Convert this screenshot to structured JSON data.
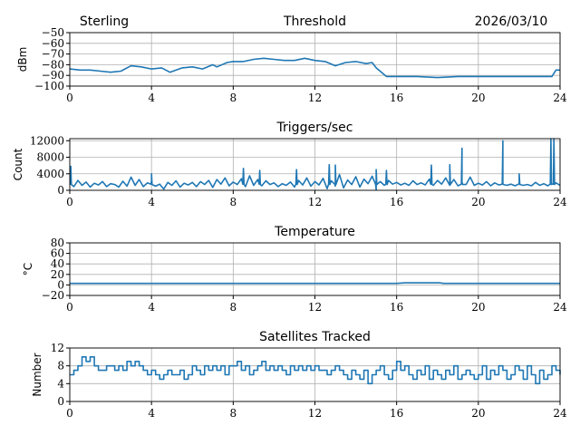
{
  "header": {
    "left": "Sterling",
    "center": "Threshold",
    "right": "2026/03/10"
  },
  "chart_data": [
    {
      "type": "line",
      "title": "Threshold",
      "ylabel": "dBm",
      "xlim": [
        0,
        24
      ],
      "ylim": [
        -100,
        -50
      ],
      "xticks": [
        0,
        4,
        8,
        12,
        16,
        20,
        24
      ],
      "yticks": [
        -100,
        -90,
        -80,
        -70,
        -60,
        -50
      ],
      "grid": true,
      "points": [
        [
          0,
          -84
        ],
        [
          0.5,
          -85
        ],
        [
          1,
          -85
        ],
        [
          1.5,
          -86
        ],
        [
          2,
          -87
        ],
        [
          2.5,
          -86
        ],
        [
          3,
          -81
        ],
        [
          3.5,
          -82
        ],
        [
          4,
          -84
        ],
        [
          4.5,
          -83
        ],
        [
          4.9,
          -87
        ],
        [
          5.5,
          -83
        ],
        [
          6,
          -82
        ],
        [
          6.5,
          -84
        ],
        [
          7,
          -80
        ],
        [
          7.2,
          -82
        ],
        [
          7.7,
          -78
        ],
        [
          8,
          -77
        ],
        [
          8.5,
          -77
        ],
        [
          9,
          -75
        ],
        [
          9.5,
          -74
        ],
        [
          10,
          -75
        ],
        [
          10.5,
          -76
        ],
        [
          11,
          -76
        ],
        [
          11.5,
          -74
        ],
        [
          12,
          -76
        ],
        [
          12.5,
          -77
        ],
        [
          13,
          -81
        ],
        [
          13.5,
          -78
        ],
        [
          14,
          -77
        ],
        [
          14.5,
          -79
        ],
        [
          14.8,
          -78
        ],
        [
          15,
          -83
        ],
        [
          15.5,
          -91
        ],
        [
          16,
          -91
        ],
        [
          17,
          -91
        ],
        [
          18,
          -92
        ],
        [
          19,
          -91
        ],
        [
          20,
          -91
        ],
        [
          21,
          -91
        ],
        [
          22,
          -91
        ],
        [
          23,
          -91
        ],
        [
          23.6,
          -91
        ],
        [
          23.8,
          -85
        ],
        [
          24,
          -85
        ]
      ]
    },
    {
      "type": "line",
      "title": "Triggers/sec",
      "ylabel": "Count",
      "xlim": [
        0,
        24
      ],
      "ylim": [
        0,
        12500
      ],
      "xticks": [
        0,
        4,
        8,
        12,
        16,
        20,
        24
      ],
      "yticks": [
        0,
        4000,
        8000,
        12000
      ],
      "grid": true,
      "baseline": [
        1500,
        900,
        2400,
        1200,
        2000,
        800,
        1700,
        1300,
        2100,
        900,
        1600,
        1400,
        800,
        2200,
        1000,
        3200,
        1200,
        2600,
        900,
        1800,
        2300,
        1000,
        1500,
        300,
        1900,
        1200,
        2300,
        800,
        1700,
        1300,
        1900,
        900,
        2100,
        1400,
        2400,
        700,
        2600,
        1500,
        3000,
        1100,
        2000,
        1400,
        2800,
        900,
        3500,
        1200,
        2600,
        1100,
        2300,
        1400,
        1800,
        900,
        1600,
        1200,
        2000,
        800,
        2400,
        1300,
        3000,
        1000,
        2100,
        1300,
        2900,
        400,
        2300,
        1000,
        3800,
        600,
        2500,
        1400,
        3300,
        800,
        2700,
        1600,
        3400,
        100,
        2100,
        1200,
        2400,
        1500,
        1900,
        1300,
        1700,
        1200,
        2300,
        1400,
        1800,
        1300,
        2700,
        1200,
        2400,
        1500,
        3000,
        1200,
        2600,
        1100,
        2000,
        1400,
        3200,
        1200,
        1700,
        1300,
        2100,
        1100,
        1800,
        1300,
        1600,
        1200,
        1500,
        1100,
        1700,
        1200,
        1400,
        1100,
        1900,
        1200,
        1600,
        1100,
        1500,
        1800,
        1200
      ],
      "spikes": [
        [
          0.05,
          5800
        ],
        [
          4.0,
          4000
        ],
        [
          8.5,
          5300
        ],
        [
          9.3,
          4800
        ],
        [
          11.1,
          5000
        ],
        [
          12.7,
          6200
        ],
        [
          13.0,
          6100
        ],
        [
          15.0,
          5000
        ],
        [
          15.5,
          4800
        ],
        [
          17.7,
          6100
        ],
        [
          18.6,
          6200
        ],
        [
          19.2,
          10200
        ],
        [
          21.2,
          12000
        ],
        [
          22.0,
          4000
        ],
        [
          23.55,
          12500
        ],
        [
          23.7,
          12500
        ]
      ]
    },
    {
      "type": "line",
      "title": "Temperature",
      "ylabel": "°C",
      "xlim": [
        0,
        24
      ],
      "ylim": [
        -20,
        80
      ],
      "xticks": [
        0,
        4,
        8,
        12,
        16,
        20,
        24
      ],
      "yticks": [
        -20,
        0,
        20,
        40,
        60,
        80
      ],
      "grid": true,
      "points": [
        [
          0,
          3
        ],
        [
          16,
          3
        ],
        [
          16.4,
          4
        ],
        [
          18.1,
          4
        ],
        [
          18.3,
          3
        ],
        [
          24,
          3
        ]
      ]
    },
    {
      "type": "line",
      "title": "Satellites Tracked",
      "ylabel": "Number",
      "xlim": [
        0,
        24
      ],
      "ylim": [
        0,
        12
      ],
      "xticks": [
        0,
        4,
        8,
        12,
        16,
        20,
        24
      ],
      "yticks": [
        0,
        4,
        8,
        12
      ],
      "grid": true,
      "step": 0.2,
      "values": [
        6,
        7,
        8,
        10,
        9,
        10,
        8,
        7,
        7,
        8,
        8,
        7,
        8,
        7,
        9,
        8,
        9,
        8,
        7,
        6,
        7,
        6,
        5,
        6,
        7,
        6,
        6,
        7,
        5,
        6,
        8,
        7,
        6,
        8,
        7,
        8,
        7,
        8,
        6,
        8,
        8,
        9,
        7,
        8,
        6,
        7,
        8,
        9,
        7,
        8,
        7,
        8,
        7,
        6,
        8,
        7,
        8,
        7,
        8,
        7,
        8,
        7,
        7,
        6,
        7,
        8,
        7,
        6,
        5,
        7,
        6,
        5,
        7,
        4,
        6,
        7,
        8,
        6,
        5,
        7,
        9,
        7,
        8,
        6,
        5,
        7,
        6,
        8,
        5,
        7,
        6,
        5,
        7,
        6,
        8,
        5,
        6,
        7,
        6,
        5,
        6,
        8,
        5,
        7,
        6,
        8,
        7,
        5,
        6,
        8,
        7,
        5,
        8,
        6,
        4,
        7,
        5,
        6,
        8,
        7,
        6
      ]
    }
  ]
}
